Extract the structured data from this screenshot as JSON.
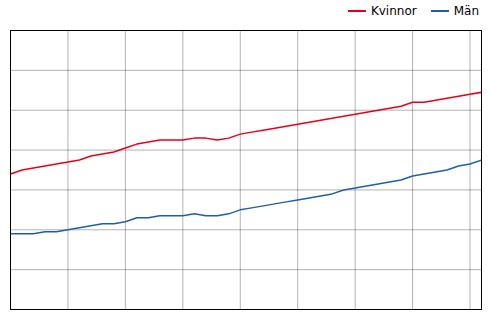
{
  "chart_data": {
    "type": "line",
    "title": "",
    "x": [
      1971,
      1972,
      1973,
      1974,
      1975,
      1976,
      1977,
      1978,
      1979,
      1980,
      1981,
      1982,
      1983,
      1984,
      1985,
      1986,
      1987,
      1988,
      1989,
      1990,
      1991,
      1992,
      1993,
      1994,
      1995,
      1996,
      1997,
      1998,
      1999,
      2000,
      2001,
      2002,
      2003,
      2004,
      2005,
      2006,
      2007,
      2008,
      2009,
      2010,
      2011,
      2012
    ],
    "series": [
      {
        "name": "Kvinnor",
        "color": "#e8001a",
        "values": [
          16.8,
          17.0,
          17.1,
          17.2,
          17.3,
          17.4,
          17.5,
          17.7,
          17.8,
          17.9,
          18.1,
          18.3,
          18.4,
          18.5,
          18.5,
          18.5,
          18.6,
          18.6,
          18.5,
          18.6,
          18.8,
          18.9,
          19.0,
          19.1,
          19.2,
          19.3,
          19.4,
          19.5,
          19.6,
          19.7,
          19.8,
          19.9,
          20.0,
          20.1,
          20.2,
          20.4,
          20.4,
          20.5,
          20.6,
          20.7,
          20.8,
          20.9
        ]
      },
      {
        "name": "Män",
        "color": "#1f5fa6",
        "values": [
          13.8,
          13.8,
          13.8,
          13.9,
          13.9,
          14.0,
          14.1,
          14.2,
          14.3,
          14.3,
          14.4,
          14.6,
          14.6,
          14.7,
          14.7,
          14.7,
          14.8,
          14.7,
          14.7,
          14.8,
          15.0,
          15.1,
          15.2,
          15.3,
          15.4,
          15.5,
          15.6,
          15.7,
          15.8,
          16.0,
          16.1,
          16.2,
          16.3,
          16.4,
          16.5,
          16.7,
          16.8,
          16.9,
          17.0,
          17.2,
          17.3,
          17.5
        ]
      }
    ],
    "xlim": [
      1971,
      2012
    ],
    "xticks": [
      1971,
      1976,
      1981,
      1986,
      1991,
      1996,
      2001,
      2006,
      2011
    ],
    "ylim": [
      10,
      24
    ],
    "yticks": [
      10,
      12,
      14,
      16,
      18,
      20,
      22,
      24
    ],
    "grid": true,
    "legend": "upper right",
    "tick_labels": false
  }
}
